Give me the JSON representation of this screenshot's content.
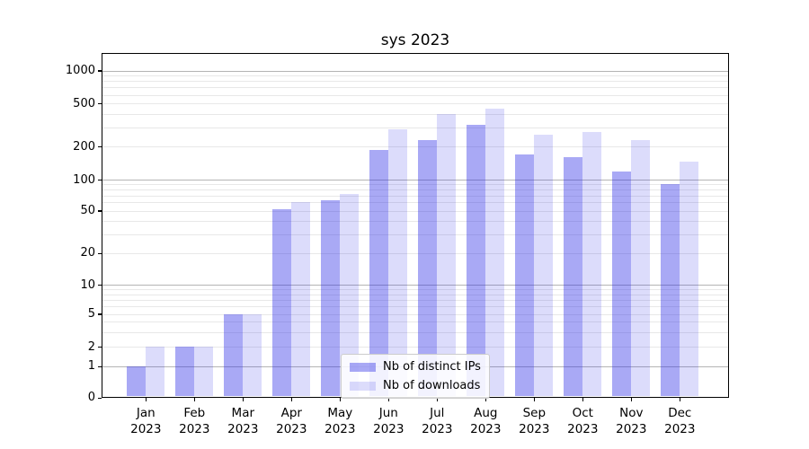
{
  "figure": {
    "title": "sys 2023"
  },
  "chart_data": {
    "type": "bar",
    "title": "sys 2023",
    "categories": [
      "Jan 2023",
      "Feb 2023",
      "Mar 2023",
      "Apr 2023",
      "May 2023",
      "Jun 2023",
      "Jul 2023",
      "Aug 2023",
      "Sep 2023",
      "Oct 2023",
      "Nov 2023",
      "Dec 2023"
    ],
    "x_tick_second_line": "2023",
    "series": [
      {
        "name": "Nb of distinct IPs",
        "color": "rgba(40,40,230,0.40)",
        "values": [
          1,
          2,
          5,
          52,
          63,
          185,
          230,
          320,
          170,
          160,
          118,
          90
        ]
      },
      {
        "name": "Nb of downloads",
        "color": "rgba(40,40,230,0.16)",
        "values": [
          2,
          2,
          5,
          60,
          73,
          290,
          400,
          450,
          255,
          270,
          230,
          145
        ]
      }
    ],
    "yscale": "symlog",
    "y_ticks": [
      1000,
      500,
      200,
      100,
      50,
      20,
      10,
      5,
      2,
      1,
      0
    ],
    "ylim": [
      0,
      1500
    ],
    "grid": "horizontal, major and minor",
    "legend_position": "lower center",
    "colors": {
      "distinct_ips_rendered": "#a9a9f5",
      "downloads_rendered": "#ddddfb",
      "major_grid": "#b4b4b4",
      "minor_grid": "#e8e8e8",
      "spine": "#000000"
    }
  }
}
